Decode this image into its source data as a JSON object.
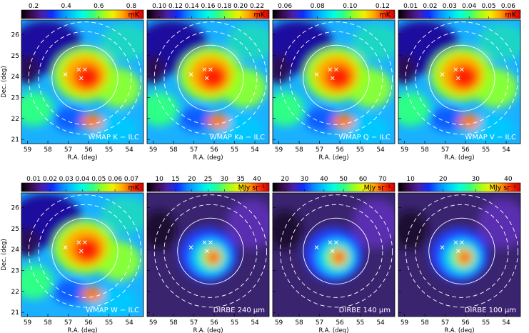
{
  "chart_data": {
    "type": "heatmap",
    "colormap": [
      "#000000",
      "#3b0c4f",
      "#4a1ea8",
      "#0e2cff",
      "#0a87ff",
      "#00c8ff",
      "#00ffe0",
      "#2dff86",
      "#99ff1f",
      "#f0f000",
      "#ffa500",
      "#ff3300",
      "#cc0000"
    ],
    "axes": {
      "x_ticks": [
        59,
        58,
        57,
        56,
        55,
        54
      ],
      "y_ticks": [
        21,
        22,
        23,
        24,
        25,
        26
      ],
      "xlim": [
        59.3,
        53.3
      ],
      "ylim": [
        20.8,
        26.7
      ]
    },
    "panels": [
      {
        "title": "WMAP K − ILC",
        "unit": "mK",
        "colorbar_ticks": [
          "0.2",
          "0.4",
          "0.6",
          "0.8"
        ],
        "xlabel": "R.A. (deg)",
        "ylabel": "Dec. (deg)"
      },
      {
        "title": "WMAP Ka − ILC",
        "unit": "mK",
        "colorbar_ticks": [
          "0.10",
          "0.12",
          "0.14",
          "0.16",
          "0.18",
          "0.20",
          "0.22"
        ],
        "xlabel": "R.A. (deg)",
        "ylabel": ""
      },
      {
        "title": "WMAP Q − ILC",
        "unit": "mK",
        "colorbar_ticks": [
          "0.06",
          "0.08",
          "0.10",
          "0.12"
        ],
        "xlabel": "R.A. (deg)",
        "ylabel": ""
      },
      {
        "title": "WMAP V − ILC",
        "unit": "mK",
        "colorbar_ticks": [
          "0.01",
          "0.02",
          "0.03",
          "0.04",
          "0.05",
          "0.06"
        ],
        "xlabel": "R.A. (deg)",
        "ylabel": ""
      },
      {
        "title": "WMAP W − ILC",
        "unit": "mK",
        "colorbar_ticks": [
          "0.01",
          "0.02",
          "0.03",
          "0.04",
          "0.05",
          "0.06",
          "0.07"
        ],
        "xlabel": "R.A. (deg)",
        "ylabel": "Dec. (deg)"
      },
      {
        "title": "DIRBE 240 μm",
        "unit": "MJy sr⁻¹",
        "colorbar_ticks": [
          "10",
          "15",
          "20",
          "25",
          "30",
          "35",
          "40"
        ],
        "xlabel": "R.A. (deg)",
        "ylabel": ""
      },
      {
        "title": "DIRBE 140 μm",
        "unit": "MJy sr⁻¹",
        "colorbar_ticks": [
          "20",
          "30",
          "40",
          "50",
          "60",
          "70"
        ],
        "xlabel": "R.A. (deg)",
        "ylabel": ""
      },
      {
        "title": "DIRBE 100 μm",
        "unit": "MJy sr⁻¹",
        "colorbar_ticks": [
          "10",
          "20",
          "30",
          "40"
        ],
        "xlabel": "R.A. (deg)",
        "ylabel": ""
      }
    ]
  }
}
